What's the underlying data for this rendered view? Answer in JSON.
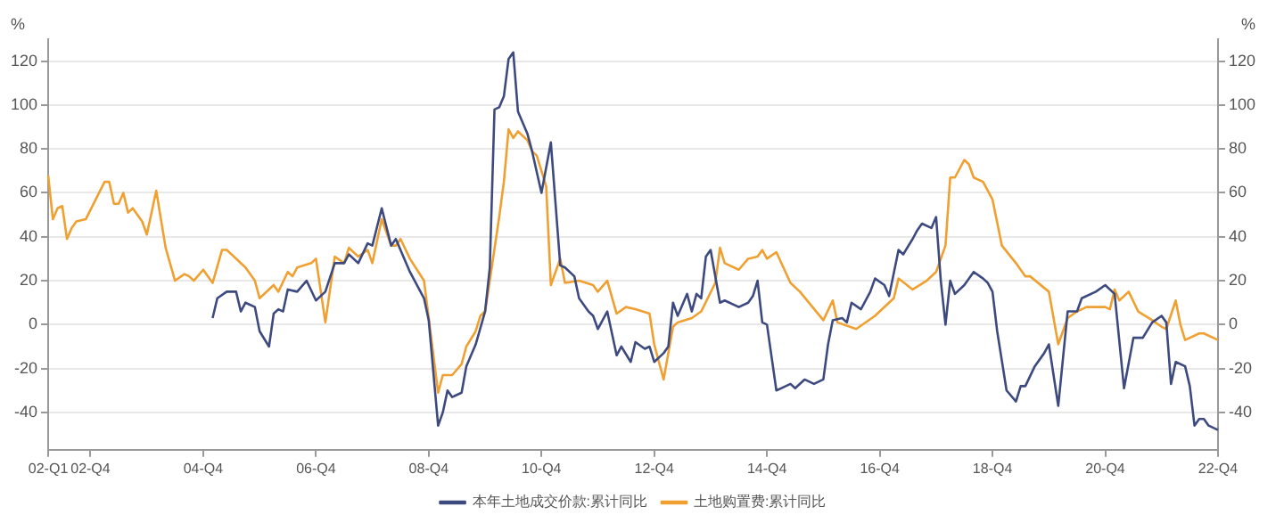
{
  "chart_data": {
    "type": "line",
    "ylabel": "%",
    "y2label": "%",
    "legend": "bottom",
    "grid": "y",
    "marker": "none",
    "line_style": "solid",
    "categories": [
      "02-Q1",
      null,
      null,
      null,
      null,
      null,
      null,
      null,
      null,
      "02-Q4",
      null,
      null,
      null,
      null,
      null,
      null,
      null,
      null,
      null,
      null,
      null,
      null,
      null,
      null,
      null,
      null,
      null,
      null,
      null,
      null,
      null,
      null,
      null,
      "04-Q4",
      null,
      null,
      null,
      null,
      null,
      null,
      null,
      null,
      null,
      null,
      null,
      null,
      null,
      null,
      null,
      null,
      null,
      null,
      null,
      null,
      null,
      null,
      null,
      "06-Q4",
      null,
      null,
      null,
      null,
      null,
      null,
      null,
      null,
      null,
      null,
      null,
      null,
      null,
      null,
      null,
      null,
      null,
      null,
      null,
      null,
      null,
      null,
      null,
      "08-Q4",
      null,
      null,
      null,
      null,
      null,
      null,
      null,
      null,
      null,
      null,
      null,
      null,
      null,
      null,
      null,
      null,
      null,
      null,
      null,
      null,
      null,
      null,
      null,
      "10-Q4",
      null,
      null,
      null,
      null,
      null,
      null,
      null,
      null,
      null,
      null,
      null,
      null,
      null,
      null,
      null,
      null,
      null,
      null,
      null,
      null,
      null,
      null,
      null,
      "12-Q4",
      null,
      null,
      null,
      null,
      null,
      null,
      null,
      null,
      null,
      null,
      null,
      null,
      null,
      null,
      null,
      null,
      null,
      null,
      null,
      null,
      null,
      null,
      null,
      "14-Q4",
      null,
      null,
      null,
      null,
      null,
      null,
      null,
      null,
      null,
      null,
      null,
      null,
      null,
      null,
      null,
      null,
      null,
      null,
      null,
      null,
      null,
      null,
      null,
      "16-Q4",
      null,
      null,
      null,
      null,
      null,
      null,
      null,
      null,
      null,
      null,
      null,
      null,
      null,
      null,
      null,
      null,
      null,
      null,
      null,
      null,
      null,
      null,
      null,
      "18-Q4",
      null,
      null,
      null,
      null,
      null,
      null,
      null,
      null,
      null,
      null,
      null,
      null,
      null,
      null,
      null,
      null,
      null,
      null,
      null,
      null,
      null,
      null,
      null,
      "20-Q4",
      null,
      null,
      null,
      null,
      null,
      null,
      null,
      null,
      null,
      null,
      null,
      null,
      null,
      null,
      null,
      null,
      null,
      null,
      null,
      null,
      null,
      null,
      null,
      "22-Q4"
    ],
    "ylim": [
      -57,
      130
    ],
    "yticks": [
      -40,
      -20,
      0,
      20,
      40,
      60,
      80,
      100,
      120
    ],
    "y2lim": [
      -57,
      130
    ],
    "y2ticks": [
      -40,
      -20,
      0,
      20,
      40,
      60,
      80,
      100,
      120
    ],
    "series": [
      {
        "name": "本年土地成交价款:累计同比",
        "color": "#3d4a80",
        "values": [
          null,
          null,
          null,
          null,
          null,
          null,
          null,
          null,
          null,
          null,
          null,
          null,
          null,
          null,
          null,
          null,
          null,
          null,
          null,
          null,
          null,
          null,
          null,
          null,
          null,
          null,
          null,
          null,
          null,
          null,
          null,
          null,
          null,
          null,
          null,
          3,
          12,
          null,
          15,
          null,
          15,
          6,
          10,
          null,
          8,
          -3,
          null,
          -10,
          5,
          7,
          6,
          16,
          null,
          15,
          null,
          20,
          null,
          11,
          null,
          15,
          null,
          28,
          null,
          28,
          32,
          null,
          28,
          null,
          37,
          36,
          null,
          53,
          null,
          36,
          39,
          null,
          null,
          24,
          null,
          null,
          12,
          2,
          null,
          -46,
          -40,
          -30,
          -33,
          null,
          -31,
          -19,
          null,
          -9,
          null,
          6,
          26,
          98,
          99,
          104,
          121,
          124,
          97,
          null,
          87,
          79,
          null,
          60,
          null,
          83,
          null,
          27,
          26,
          null,
          22,
          12,
          null,
          6,
          4,
          -2,
          null,
          6,
          null,
          -14,
          -10,
          null,
          -17,
          -8,
          null,
          -11,
          -10,
          -17,
          null,
          -13,
          -10,
          10,
          4,
          null,
          14,
          6,
          14,
          12,
          31,
          34,
          null,
          10,
          11,
          null,
          null,
          8,
          null,
          10,
          13,
          20,
          1,
          0,
          null,
          -30,
          -29,
          null,
          -27,
          -29,
          null,
          -25,
          null,
          -27,
          null,
          -25,
          -9,
          2,
          null,
          3,
          1,
          10,
          null,
          7,
          null,
          15,
          21,
          null,
          18,
          13,
          null,
          34,
          32,
          null,
          39,
          43,
          46,
          null,
          44,
          49,
          20,
          0,
          20,
          14,
          null,
          18,
          null,
          24,
          null,
          21,
          19,
          15,
          -3,
          null,
          -30,
          null,
          -35,
          -28,
          -28,
          null,
          -19,
          null,
          -13,
          -9,
          null,
          -37,
          null,
          6,
          null,
          6,
          12,
          null,
          null,
          15,
          null,
          18,
          null,
          14,
          null,
          -29,
          null,
          -6,
          null,
          -6,
          null,
          1,
          null,
          4,
          1,
          -27,
          -17,
          null,
          -19,
          -28,
          -46,
          -43,
          -43,
          -46,
          null,
          -48
        ]
      },
      {
        "name": "土地购置费:累计同比",
        "color": "#f0a030",
        "values": [
          68,
          48,
          53,
          54,
          39,
          44,
          47,
          null,
          48,
          null,
          null,
          null,
          65,
          65,
          55,
          55,
          60,
          51,
          53,
          null,
          47,
          41,
          null,
          61,
          null,
          35,
          null,
          20,
          null,
          23,
          22,
          20,
          null,
          25,
          null,
          19,
          null,
          34,
          34,
          null,
          null,
          null,
          26,
          null,
          20,
          12,
          null,
          null,
          18,
          15,
          null,
          24,
          22,
          26,
          null,
          null,
          28,
          30,
          null,
          1,
          null,
          31,
          null,
          28,
          35,
          null,
          31,
          null,
          34,
          28,
          null,
          48,
          null,
          36,
          36,
          39,
          null,
          30,
          null,
          null,
          20,
          null,
          null,
          -31,
          -23,
          null,
          -23,
          null,
          -18,
          -10,
          null,
          -3,
          4,
          6,
          20,
          null,
          49,
          65,
          89,
          85,
          88,
          null,
          84,
          79,
          77,
          null,
          63,
          18,
          null,
          30,
          19,
          null,
          null,
          20,
          null,
          null,
          18,
          15,
          null,
          20,
          null,
          5,
          null,
          8,
          null,
          7,
          null,
          null,
          5,
          -9,
          null,
          -25,
          null,
          -1,
          1,
          null,
          null,
          3,
          null,
          6,
          null,
          null,
          19,
          35,
          28,
          null,
          null,
          25,
          null,
          30,
          null,
          31,
          34,
          30,
          null,
          33,
          null,
          null,
          19,
          null,
          15,
          null,
          null,
          null,
          null,
          2,
          null,
          11,
          1,
          null,
          null,
          null,
          -2,
          null,
          null,
          null,
          4,
          6,
          null,
          null,
          12,
          21,
          null,
          null,
          16,
          null,
          null,
          20,
          null,
          24,
          null,
          36,
          67,
          67,
          null,
          75,
          73,
          67,
          null,
          65,
          null,
          57,
          null,
          36,
          null,
          null,
          28,
          null,
          22,
          22,
          null,
          null,
          null,
          15,
          null,
          -9,
          null,
          3,
          null,
          6,
          null,
          8,
          null,
          null,
          null,
          8,
          7,
          16,
          11,
          null,
          15,
          null,
          6,
          null,
          null,
          2,
          null,
          -1,
          -2,
          null,
          11,
          0,
          -7,
          null,
          null,
          -4,
          -4,
          null,
          null,
          -7
        ]
      }
    ]
  }
}
